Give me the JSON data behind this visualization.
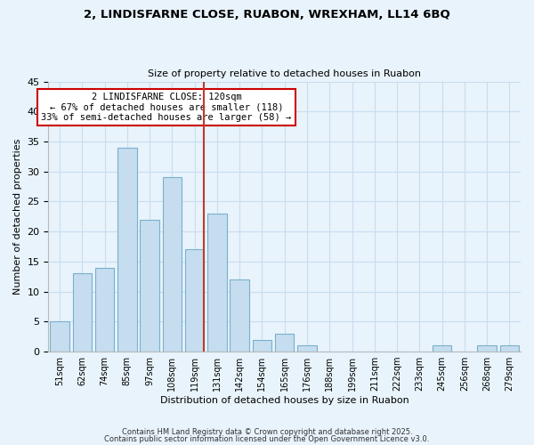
{
  "title_line1": "2, LINDISFARNE CLOSE, RUABON, WREXHAM, LL14 6BQ",
  "title_line2": "Size of property relative to detached houses in Ruabon",
  "xlabel": "Distribution of detached houses by size in Ruabon",
  "ylabel": "Number of detached properties",
  "bar_labels": [
    "51sqm",
    "62sqm",
    "74sqm",
    "85sqm",
    "97sqm",
    "108sqm",
    "119sqm",
    "131sqm",
    "142sqm",
    "154sqm",
    "165sqm",
    "176sqm",
    "188sqm",
    "199sqm",
    "211sqm",
    "222sqm",
    "233sqm",
    "245sqm",
    "256sqm",
    "268sqm",
    "279sqm"
  ],
  "bar_heights": [
    5,
    13,
    14,
    34,
    22,
    29,
    17,
    23,
    12,
    2,
    3,
    1,
    0,
    0,
    0,
    0,
    0,
    1,
    0,
    1,
    1
  ],
  "bar_color": "#c5ddef",
  "bar_edge_color": "#7ab0cc",
  "grid_color": "#c8ddf0",
  "background_color": "#e8f3fb",
  "vline_color": "#c0392b",
  "annotation_title": "2 LINDISFARNE CLOSE: 120sqm",
  "annotation_line1": "← 67% of detached houses are smaller (118)",
  "annotation_line2": "33% of semi-detached houses are larger (58) →",
  "annotation_box_color": "#ffffff",
  "annotation_box_edge": "#cc0000",
  "ylim": [
    0,
    45
  ],
  "yticks": [
    0,
    5,
    10,
    15,
    20,
    25,
    30,
    35,
    40,
    45
  ],
  "footnote1": "Contains HM Land Registry data © Crown copyright and database right 2025.",
  "footnote2": "Contains public sector information licensed under the Open Government Licence v3.0."
}
